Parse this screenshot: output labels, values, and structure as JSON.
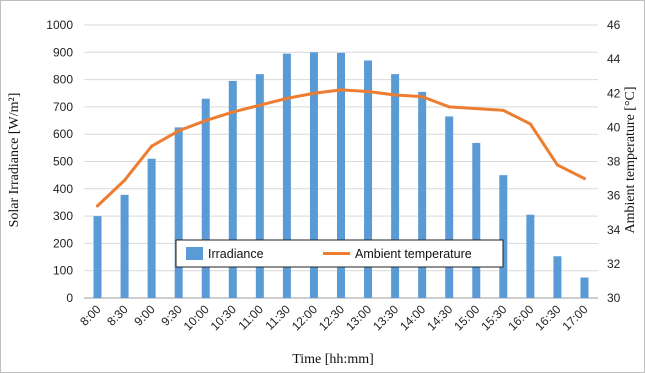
{
  "chart_data": {
    "type": "bar",
    "categories": [
      "8:00",
      "8:30",
      "9:00",
      "9:30",
      "10:00",
      "10:30",
      "11:00",
      "11:30",
      "12:00",
      "12:30",
      "13:00",
      "13:30",
      "14:00",
      "14:30",
      "15:00",
      "15:30",
      "16:00",
      "16:30",
      "17:00"
    ],
    "series": [
      {
        "name": "Irradiance",
        "type": "bar",
        "axis": "left",
        "color": "#5B9BD5",
        "values": [
          300,
          378,
          510,
          625,
          730,
          795,
          820,
          895,
          900,
          898,
          870,
          820,
          755,
          665,
          568,
          450,
          305,
          153,
          75
        ]
      },
      {
        "name": "Ambient temperature",
        "type": "line",
        "axis": "right",
        "color": "#ED7D31",
        "values": [
          35.4,
          36.9,
          38.9,
          39.8,
          40.4,
          40.9,
          41.3,
          41.7,
          42.0,
          42.2,
          42.1,
          41.9,
          41.8,
          41.2,
          41.1,
          41.0,
          40.2,
          37.8,
          37.0
        ]
      }
    ],
    "xlabel": "Time [hh:mm]",
    "ylabel": "Solar Irradiance [W/m²]",
    "y2label": "Ambient temperature [°C]",
    "ylim": [
      0,
      1000
    ],
    "yticks": [
      0,
      100,
      200,
      300,
      400,
      500,
      600,
      700,
      800,
      900,
      1000
    ],
    "y2lim": [
      30,
      46
    ],
    "y2ticks": [
      30,
      32,
      34,
      36,
      38,
      40,
      42,
      44,
      46
    ],
    "grid": true,
    "legend": "center-bottom"
  }
}
